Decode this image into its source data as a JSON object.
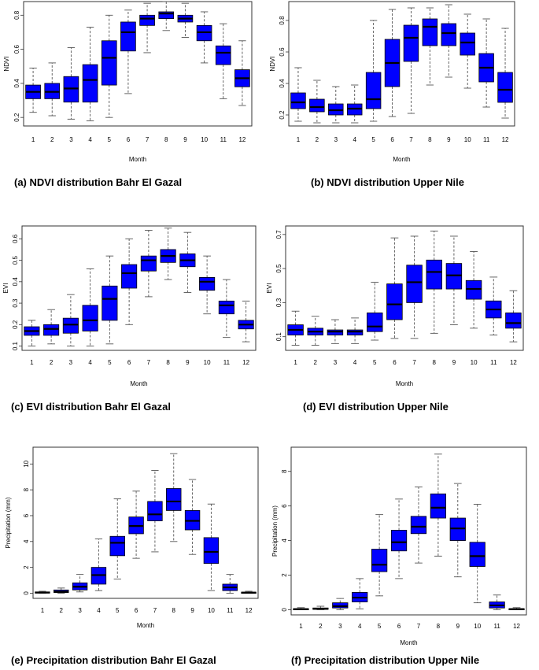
{
  "chart_data": [
    {
      "type": "boxplot",
      "caption": "(a) NDVI distribution Bahr El Gazal",
      "xlabel": "Month",
      "ylabel": "NDVI",
      "categories": [
        "1",
        "2",
        "3",
        "4",
        "5",
        "6",
        "7",
        "8",
        "9",
        "10",
        "11",
        "12"
      ],
      "yticks": [
        "0.2",
        "0.4",
        "0.6",
        "0.8"
      ],
      "ylim": [
        0.15,
        0.88
      ],
      "boxes": [
        {
          "min": 0.23,
          "q1": 0.31,
          "median": 0.35,
          "q3": 0.39,
          "max": 0.49
        },
        {
          "min": 0.21,
          "q1": 0.31,
          "median": 0.35,
          "q3": 0.4,
          "max": 0.52
        },
        {
          "min": 0.19,
          "q1": 0.29,
          "median": 0.37,
          "q3": 0.44,
          "max": 0.61
        },
        {
          "min": 0.18,
          "q1": 0.29,
          "median": 0.42,
          "q3": 0.51,
          "max": 0.73
        },
        {
          "min": 0.2,
          "q1": 0.39,
          "median": 0.55,
          "q3": 0.65,
          "max": 0.8
        },
        {
          "min": 0.34,
          "q1": 0.59,
          "median": 0.7,
          "q3": 0.76,
          "max": 0.83
        },
        {
          "min": 0.58,
          "q1": 0.74,
          "median": 0.78,
          "q3": 0.8,
          "max": 0.87
        },
        {
          "min": 0.71,
          "q1": 0.78,
          "median": 0.81,
          "q3": 0.82,
          "max": 0.88
        },
        {
          "min": 0.67,
          "q1": 0.76,
          "median": 0.78,
          "q3": 0.8,
          "max": 0.87
        },
        {
          "min": 0.52,
          "q1": 0.65,
          "median": 0.7,
          "q3": 0.74,
          "max": 0.82
        },
        {
          "min": 0.31,
          "q1": 0.51,
          "median": 0.58,
          "q3": 0.62,
          "max": 0.75
        },
        {
          "min": 0.27,
          "q1": 0.38,
          "median": 0.43,
          "q3": 0.48,
          "max": 0.65
        }
      ]
    },
    {
      "type": "boxplot",
      "caption": "(b) NDVI distribution Upper Nile",
      "xlabel": "Month",
      "ylabel": "NDVI",
      "categories": [
        "1",
        "2",
        "3",
        "4",
        "5",
        "6",
        "7",
        "8",
        "9",
        "10",
        "11",
        "12"
      ],
      "yticks": [
        "0.2",
        "0.4",
        "0.6",
        "0.8"
      ],
      "ylim": [
        0.13,
        0.92
      ],
      "boxes": [
        {
          "min": 0.16,
          "q1": 0.24,
          "median": 0.28,
          "q3": 0.34,
          "max": 0.5
        },
        {
          "min": 0.15,
          "q1": 0.22,
          "median": 0.25,
          "q3": 0.3,
          "max": 0.42
        },
        {
          "min": 0.15,
          "q1": 0.2,
          "median": 0.23,
          "q3": 0.27,
          "max": 0.38
        },
        {
          "min": 0.15,
          "q1": 0.2,
          "median": 0.24,
          "q3": 0.27,
          "max": 0.39
        },
        {
          "min": 0.16,
          "q1": 0.24,
          "median": 0.3,
          "q3": 0.47,
          "max": 0.8
        },
        {
          "min": 0.19,
          "q1": 0.38,
          "median": 0.53,
          "q3": 0.68,
          "max": 0.87
        },
        {
          "min": 0.21,
          "q1": 0.54,
          "median": 0.69,
          "q3": 0.77,
          "max": 0.88
        },
        {
          "min": 0.39,
          "q1": 0.64,
          "median": 0.76,
          "q3": 0.81,
          "max": 0.88
        },
        {
          "min": 0.44,
          "q1": 0.64,
          "median": 0.72,
          "q3": 0.78,
          "max": 0.9
        },
        {
          "min": 0.37,
          "q1": 0.58,
          "median": 0.66,
          "q3": 0.72,
          "max": 0.84
        },
        {
          "min": 0.25,
          "q1": 0.41,
          "median": 0.5,
          "q3": 0.59,
          "max": 0.81
        },
        {
          "min": 0.18,
          "q1": 0.28,
          "median": 0.36,
          "q3": 0.47,
          "max": 0.75
        }
      ]
    },
    {
      "type": "boxplot",
      "caption": "(c) EVI distribution Bahr El Gazal",
      "xlabel": "Month",
      "ylabel": "EVI",
      "categories": [
        "1",
        "2",
        "3",
        "4",
        "5",
        "6",
        "7",
        "8",
        "9",
        "10",
        "11",
        "12"
      ],
      "yticks": [
        "0.1",
        "0.2",
        "0.3",
        "0.4",
        "0.5",
        "0.6"
      ],
      "ylim": [
        0.08,
        0.66
      ],
      "boxes": [
        {
          "min": 0.1,
          "q1": 0.15,
          "median": 0.17,
          "q3": 0.19,
          "max": 0.22
        },
        {
          "min": 0.11,
          "q1": 0.15,
          "median": 0.18,
          "q3": 0.2,
          "max": 0.27
        },
        {
          "min": 0.1,
          "q1": 0.16,
          "median": 0.2,
          "q3": 0.23,
          "max": 0.34
        },
        {
          "min": 0.1,
          "q1": 0.17,
          "median": 0.22,
          "q3": 0.29,
          "max": 0.46
        },
        {
          "min": 0.11,
          "q1": 0.22,
          "median": 0.32,
          "q3": 0.38,
          "max": 0.52
        },
        {
          "min": 0.2,
          "q1": 0.37,
          "median": 0.44,
          "q3": 0.48,
          "max": 0.6
        },
        {
          "min": 0.33,
          "q1": 0.45,
          "median": 0.5,
          "q3": 0.52,
          "max": 0.64
        },
        {
          "min": 0.41,
          "q1": 0.49,
          "median": 0.52,
          "q3": 0.55,
          "max": 0.65
        },
        {
          "min": 0.35,
          "q1": 0.47,
          "median": 0.5,
          "q3": 0.53,
          "max": 0.63
        },
        {
          "min": 0.25,
          "q1": 0.36,
          "median": 0.4,
          "q3": 0.42,
          "max": 0.52
        },
        {
          "min": 0.14,
          "q1": 0.25,
          "median": 0.29,
          "q3": 0.31,
          "max": 0.41
        },
        {
          "min": 0.12,
          "q1": 0.18,
          "median": 0.2,
          "q3": 0.22,
          "max": 0.31
        }
      ]
    },
    {
      "type": "boxplot",
      "caption": "(d) EVI distribution Upper Nile",
      "xlabel": "Month",
      "ylabel": "EVI",
      "categories": [
        "1",
        "2",
        "3",
        "4",
        "5",
        "6",
        "7",
        "8",
        "9",
        "10",
        "11",
        "12"
      ],
      "yticks": [
        "0.1",
        "0.3",
        "0.5",
        "0.7"
      ],
      "ylim": [
        0.02,
        0.75
      ],
      "boxes": [
        {
          "min": 0.05,
          "q1": 0.11,
          "median": 0.14,
          "q3": 0.17,
          "max": 0.25
        },
        {
          "min": 0.05,
          "q1": 0.11,
          "median": 0.13,
          "q3": 0.15,
          "max": 0.22
        },
        {
          "min": 0.06,
          "q1": 0.11,
          "median": 0.13,
          "q3": 0.14,
          "max": 0.2
        },
        {
          "min": 0.06,
          "q1": 0.11,
          "median": 0.13,
          "q3": 0.14,
          "max": 0.21
        },
        {
          "min": 0.08,
          "q1": 0.13,
          "median": 0.16,
          "q3": 0.24,
          "max": 0.42
        },
        {
          "min": 0.09,
          "q1": 0.2,
          "median": 0.29,
          "q3": 0.41,
          "max": 0.68
        },
        {
          "min": 0.09,
          "q1": 0.3,
          "median": 0.42,
          "q3": 0.52,
          "max": 0.69
        },
        {
          "min": 0.12,
          "q1": 0.38,
          "median": 0.48,
          "q3": 0.55,
          "max": 0.72
        },
        {
          "min": 0.17,
          "q1": 0.38,
          "median": 0.46,
          "q3": 0.53,
          "max": 0.69
        },
        {
          "min": 0.15,
          "q1": 0.32,
          "median": 0.38,
          "q3": 0.43,
          "max": 0.6
        },
        {
          "min": 0.11,
          "q1": 0.21,
          "median": 0.26,
          "q3": 0.31,
          "max": 0.45
        },
        {
          "min": 0.07,
          "q1": 0.15,
          "median": 0.18,
          "q3": 0.24,
          "max": 0.37
        }
      ]
    },
    {
      "type": "boxplot",
      "caption": "(e) Precipitation distribution Bahr El Gazal",
      "xlabel": "Month",
      "ylabel": "Precipitation (mm)",
      "categories": [
        "1",
        "2",
        "3",
        "4",
        "5",
        "6",
        "7",
        "8",
        "9",
        "10",
        "11",
        "12"
      ],
      "yticks": [
        "0",
        "2",
        "4",
        "6",
        "8",
        "10"
      ],
      "ylim": [
        -0.4,
        11.3
      ],
      "boxes": [
        {
          "min": 0.0,
          "q1": 0.02,
          "median": 0.05,
          "q3": 0.1,
          "max": 0.15
        },
        {
          "min": 0.0,
          "q1": 0.05,
          "median": 0.12,
          "q3": 0.25,
          "max": 0.4
        },
        {
          "min": 0.1,
          "q1": 0.25,
          "median": 0.5,
          "q3": 0.8,
          "max": 1.45
        },
        {
          "min": 0.2,
          "q1": 0.7,
          "median": 1.4,
          "q3": 2.0,
          "max": 4.2
        },
        {
          "min": 1.1,
          "q1": 2.9,
          "median": 3.9,
          "q3": 4.4,
          "max": 7.3
        },
        {
          "min": 2.7,
          "q1": 4.6,
          "median": 5.2,
          "q3": 5.9,
          "max": 7.9
        },
        {
          "min": 3.2,
          "q1": 5.6,
          "median": 6.1,
          "q3": 7.1,
          "max": 9.5
        },
        {
          "min": 4.0,
          "q1": 6.4,
          "median": 7.1,
          "q3": 8.1,
          "max": 10.8
        },
        {
          "min": 3.0,
          "q1": 4.9,
          "median": 5.6,
          "q3": 6.4,
          "max": 8.8
        },
        {
          "min": 0.2,
          "q1": 2.3,
          "median": 3.2,
          "q3": 4.3,
          "max": 6.9
        },
        {
          "min": 0.0,
          "q1": 0.2,
          "median": 0.45,
          "q3": 0.7,
          "max": 1.45
        },
        {
          "min": 0.0,
          "q1": 0.02,
          "median": 0.04,
          "q3": 0.08,
          "max": 0.15
        }
      ]
    },
    {
      "type": "boxplot",
      "caption": "(f) Precipitation distribution Upper Nile",
      "xlabel": "Month",
      "ylabel": "Precipitation (mm)",
      "categories": [
        "1",
        "2",
        "3",
        "4",
        "5",
        "6",
        "7",
        "8",
        "9",
        "10",
        "11",
        "12"
      ],
      "yticks": [
        "0",
        "2",
        "4",
        "6",
        "8"
      ],
      "ylim": [
        -0.3,
        9.4
      ],
      "boxes": [
        {
          "min": 0.0,
          "q1": 0.01,
          "median": 0.03,
          "q3": 0.06,
          "max": 0.12
        },
        {
          "min": 0.0,
          "q1": 0.02,
          "median": 0.05,
          "q3": 0.1,
          "max": 0.2
        },
        {
          "min": 0.0,
          "q1": 0.1,
          "median": 0.2,
          "q3": 0.4,
          "max": 0.65
        },
        {
          "min": 0.05,
          "q1": 0.45,
          "median": 0.7,
          "q3": 1.0,
          "max": 1.8
        },
        {
          "min": 0.8,
          "q1": 2.2,
          "median": 2.6,
          "q3": 3.5,
          "max": 5.5
        },
        {
          "min": 1.8,
          "q1": 3.4,
          "median": 3.9,
          "q3": 4.6,
          "max": 6.4
        },
        {
          "min": 2.7,
          "q1": 4.4,
          "median": 4.8,
          "q3": 5.4,
          "max": 7.1
        },
        {
          "min": 3.1,
          "q1": 5.3,
          "median": 5.9,
          "q3": 6.7,
          "max": 9.0
        },
        {
          "min": 1.9,
          "q1": 4.0,
          "median": 4.7,
          "q3": 5.3,
          "max": 7.3
        },
        {
          "min": 0.4,
          "q1": 2.5,
          "median": 3.1,
          "q3": 3.9,
          "max": 6.1
        },
        {
          "min": 0.0,
          "q1": 0.1,
          "median": 0.25,
          "q3": 0.45,
          "max": 0.85
        },
        {
          "min": 0.0,
          "q1": 0.01,
          "median": 0.03,
          "q3": 0.06,
          "max": 0.12
        }
      ]
    }
  ],
  "colors": {
    "box_fill": "#0000ff",
    "line": "#000000",
    "whisker": "#555555"
  }
}
